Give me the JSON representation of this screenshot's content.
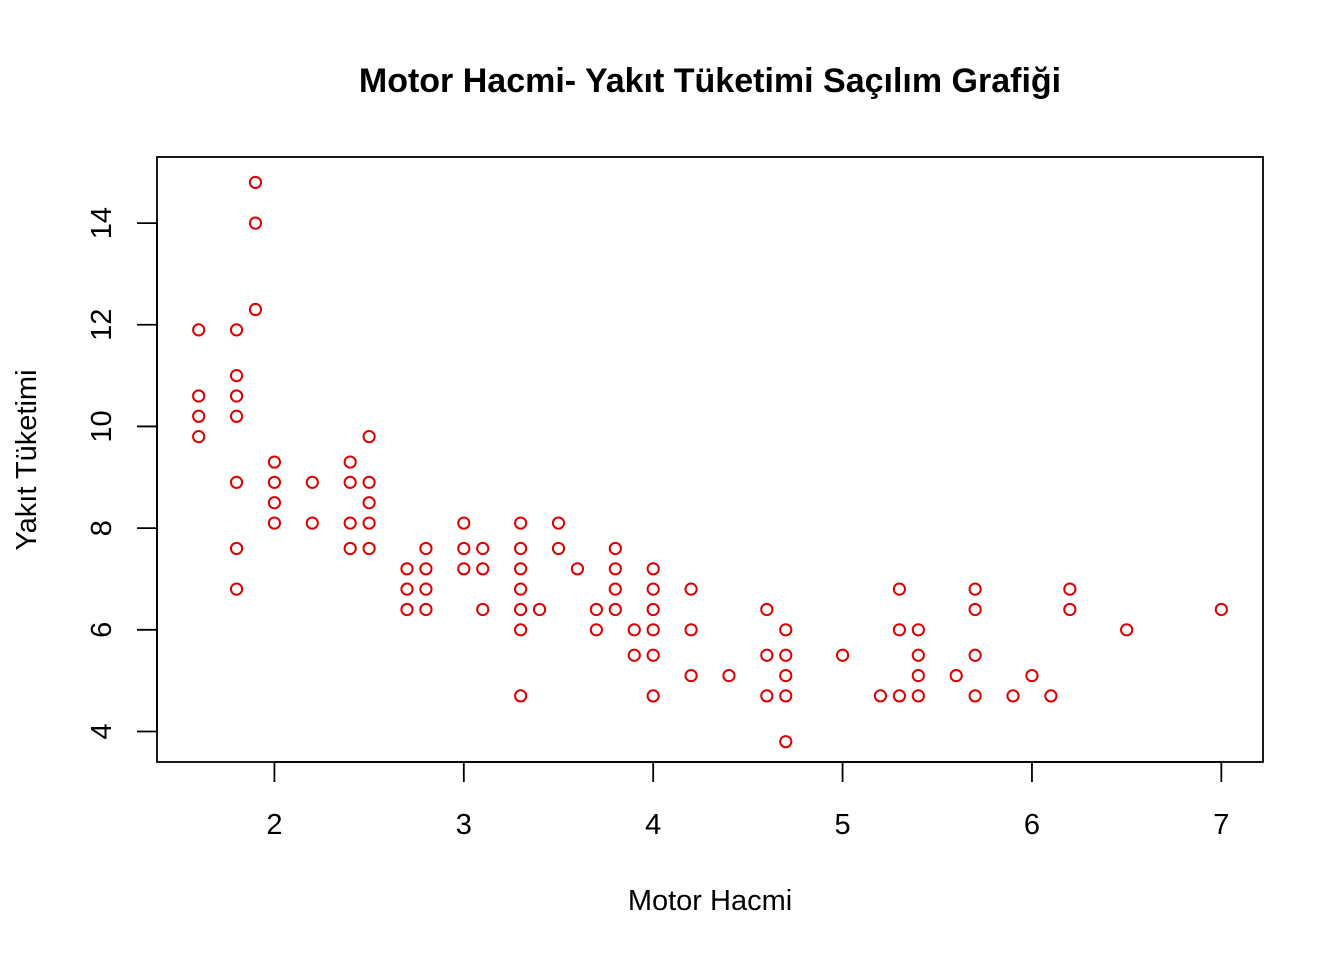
{
  "chart_data": {
    "type": "scatter",
    "title": "Motor Hacmi- Yakıt Tüketimi Saçılım Grafiği",
    "xlabel": "Motor Hacmi",
    "ylabel": "Yakıt Tüketimi",
    "xlim": [
      1.38,
      7.22
    ],
    "ylim": [
      3.4,
      15.3
    ],
    "xticks": [
      2,
      3,
      4,
      5,
      6,
      7
    ],
    "yticks": [
      4,
      6,
      8,
      10,
      12,
      14
    ],
    "grid": false,
    "marker": "open-circle",
    "point_color": "#dd0000",
    "points": [
      [
        1.6,
        11.9
      ],
      [
        1.6,
        10.6
      ],
      [
        1.6,
        10.2
      ],
      [
        1.6,
        9.8
      ],
      [
        1.8,
        11.9
      ],
      [
        1.8,
        11.0
      ],
      [
        1.8,
        10.6
      ],
      [
        1.8,
        10.2
      ],
      [
        1.8,
        8.9
      ],
      [
        1.8,
        7.6
      ],
      [
        1.8,
        6.8
      ],
      [
        1.9,
        14.8
      ],
      [
        1.9,
        14.0
      ],
      [
        1.9,
        12.3
      ],
      [
        2.0,
        9.3
      ],
      [
        2.0,
        8.9
      ],
      [
        2.0,
        8.5
      ],
      [
        2.0,
        8.1
      ],
      [
        2.2,
        8.9
      ],
      [
        2.2,
        8.1
      ],
      [
        2.4,
        9.3
      ],
      [
        2.4,
        8.9
      ],
      [
        2.4,
        8.1
      ],
      [
        2.4,
        7.6
      ],
      [
        2.5,
        9.8
      ],
      [
        2.5,
        8.9
      ],
      [
        2.5,
        8.5
      ],
      [
        2.5,
        8.1
      ],
      [
        2.5,
        7.6
      ],
      [
        2.7,
        7.2
      ],
      [
        2.7,
        6.8
      ],
      [
        2.7,
        6.4
      ],
      [
        2.8,
        7.6
      ],
      [
        2.8,
        7.2
      ],
      [
        2.8,
        6.8
      ],
      [
        2.8,
        6.4
      ],
      [
        3.0,
        8.1
      ],
      [
        3.0,
        7.6
      ],
      [
        3.0,
        7.2
      ],
      [
        3.1,
        7.6
      ],
      [
        3.1,
        7.2
      ],
      [
        3.1,
        6.4
      ],
      [
        3.3,
        8.1
      ],
      [
        3.3,
        7.6
      ],
      [
        3.3,
        7.2
      ],
      [
        3.3,
        6.8
      ],
      [
        3.3,
        6.4
      ],
      [
        3.3,
        6.0
      ],
      [
        3.3,
        4.7
      ],
      [
        3.4,
        6.4
      ],
      [
        3.5,
        8.1
      ],
      [
        3.5,
        7.6
      ],
      [
        3.6,
        7.2
      ],
      [
        3.7,
        6.4
      ],
      [
        3.7,
        6.0
      ],
      [
        3.8,
        7.6
      ],
      [
        3.8,
        7.2
      ],
      [
        3.8,
        6.8
      ],
      [
        3.8,
        6.4
      ],
      [
        3.9,
        6.0
      ],
      [
        3.9,
        5.5
      ],
      [
        4.0,
        7.2
      ],
      [
        4.0,
        6.8
      ],
      [
        4.0,
        6.4
      ],
      [
        4.0,
        6.0
      ],
      [
        4.0,
        5.5
      ],
      [
        4.0,
        4.7
      ],
      [
        4.2,
        6.8
      ],
      [
        4.2,
        6.0
      ],
      [
        4.2,
        5.1
      ],
      [
        4.4,
        5.1
      ],
      [
        4.6,
        6.4
      ],
      [
        4.6,
        5.5
      ],
      [
        4.6,
        4.7
      ],
      [
        4.7,
        6.0
      ],
      [
        4.7,
        5.5
      ],
      [
        4.7,
        5.1
      ],
      [
        4.7,
        4.7
      ],
      [
        4.7,
        3.8
      ],
      [
        5.0,
        5.5
      ],
      [
        5.2,
        4.7
      ],
      [
        5.3,
        6.8
      ],
      [
        5.3,
        6.0
      ],
      [
        5.3,
        4.7
      ],
      [
        5.4,
        6.0
      ],
      [
        5.4,
        5.5
      ],
      [
        5.4,
        5.1
      ],
      [
        5.4,
        4.7
      ],
      [
        5.6,
        5.1
      ],
      [
        5.7,
        6.8
      ],
      [
        5.7,
        6.4
      ],
      [
        5.7,
        5.5
      ],
      [
        5.7,
        4.7
      ],
      [
        5.9,
        4.7
      ],
      [
        6.0,
        5.1
      ],
      [
        6.1,
        4.7
      ],
      [
        6.2,
        6.8
      ],
      [
        6.2,
        6.4
      ],
      [
        6.5,
        6.0
      ],
      [
        7.0,
        6.4
      ]
    ]
  }
}
